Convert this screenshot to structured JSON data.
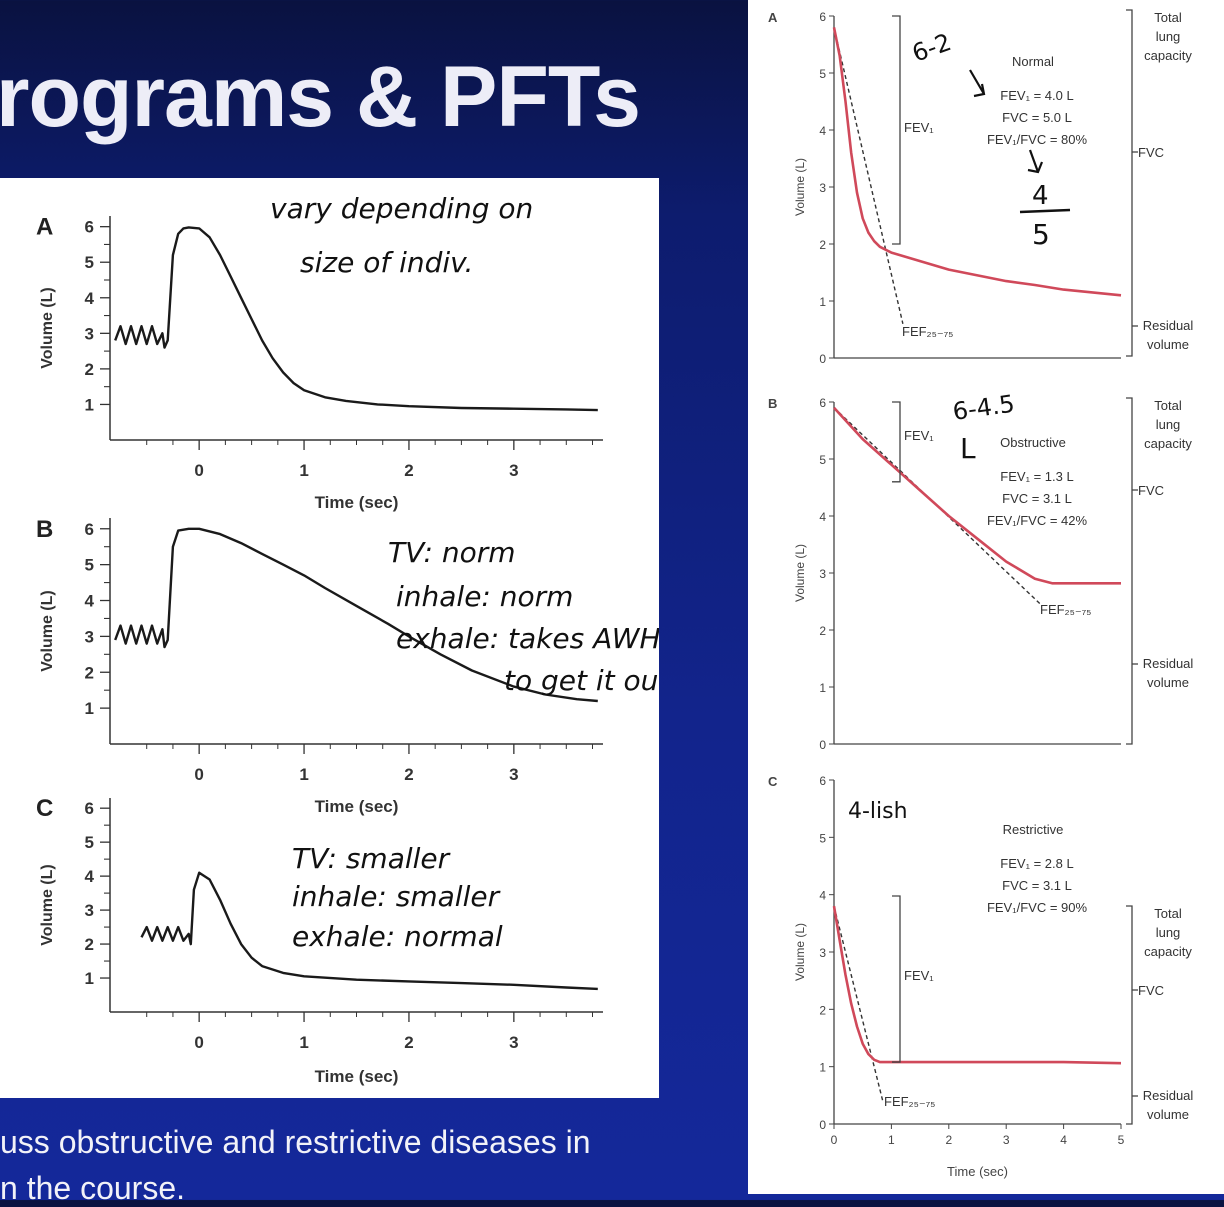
{
  "slide": {
    "title": "rograms & PFTs",
    "footer_lines": [
      "uss obstructive and restrictive diseases in",
      "n the course."
    ]
  },
  "colors": {
    "background_top": "#0a1240",
    "background_bottom": "#14289a",
    "panel": "#ffffff",
    "curve_left": "#1a1a1a",
    "curve_right": "#d0495a",
    "annotation_ink": "#111111"
  },
  "chart_data": [
    {
      "type": "line",
      "panel": "A",
      "xlabel": "Time (sec)",
      "ylabel": "Volume (L)",
      "xticks": [
        0,
        1,
        2,
        3
      ],
      "yticks": [
        1,
        2,
        3,
        4,
        5,
        6
      ],
      "xlim": [
        -0.85,
        3.85
      ],
      "ylim": [
        0,
        6.3
      ],
      "series": [
        {
          "x": [
            -0.8,
            -0.75,
            -0.7,
            -0.65,
            -0.6,
            -0.55,
            -0.5,
            -0.45,
            -0.4,
            -0.35,
            -0.33,
            -0.3,
            -0.25,
            -0.2,
            -0.15,
            -0.1,
            0,
            0.1,
            0.2,
            0.3,
            0.4,
            0.5,
            0.6,
            0.7,
            0.8,
            0.9,
            1.0,
            1.2,
            1.4,
            1.7,
            2.0,
            2.5,
            3.0,
            3.5,
            3.8
          ],
          "y": [
            2.8,
            3.2,
            2.7,
            3.2,
            2.7,
            3.2,
            2.7,
            3.2,
            2.7,
            3.0,
            2.6,
            2.8,
            5.2,
            5.8,
            5.95,
            5.98,
            5.95,
            5.7,
            5.2,
            4.6,
            4.0,
            3.4,
            2.8,
            2.3,
            1.9,
            1.6,
            1.4,
            1.2,
            1.1,
            1.0,
            0.95,
            0.9,
            0.88,
            0.86,
            0.84
          ]
        }
      ],
      "annotations": [
        "vary depending on",
        "size of indiv."
      ]
    },
    {
      "type": "line",
      "panel": "B",
      "xlabel": "Time (sec)",
      "ylabel": "Volume (L)",
      "xticks": [
        0,
        1,
        2,
        3
      ],
      "yticks": [
        1,
        2,
        3,
        4,
        5,
        6
      ],
      "xlim": [
        -0.85,
        3.85
      ],
      "ylim": [
        0,
        6.3
      ],
      "series": [
        {
          "x": [
            -0.8,
            -0.75,
            -0.7,
            -0.65,
            -0.6,
            -0.55,
            -0.5,
            -0.45,
            -0.4,
            -0.35,
            -0.33,
            -0.3,
            -0.25,
            -0.2,
            -0.1,
            0,
            0.2,
            0.4,
            0.6,
            0.8,
            1.0,
            1.2,
            1.5,
            1.8,
            2.0,
            2.3,
            2.6,
            3.0,
            3.3,
            3.6,
            3.8
          ],
          "y": [
            2.9,
            3.3,
            2.8,
            3.3,
            2.8,
            3.3,
            2.8,
            3.3,
            2.8,
            3.2,
            2.7,
            2.9,
            5.5,
            5.95,
            6.0,
            6.0,
            5.85,
            5.6,
            5.3,
            5.0,
            4.7,
            4.35,
            3.85,
            3.35,
            3.0,
            2.5,
            2.05,
            1.6,
            1.38,
            1.25,
            1.2
          ]
        }
      ],
      "annotations": [
        "TV: norm",
        "inhale: norm",
        "exhale: takes AWHILE",
        "to get it out"
      ]
    },
    {
      "type": "line",
      "panel": "C",
      "xlabel": "Time (sec)",
      "ylabel": "Volume (L)",
      "xticks": [
        0,
        1,
        2,
        3
      ],
      "yticks": [
        1,
        2,
        3,
        4,
        5,
        6
      ],
      "xlim": [
        -0.85,
        3.85
      ],
      "ylim": [
        0,
        6.3
      ],
      "series": [
        {
          "x": [
            -0.55,
            -0.5,
            -0.45,
            -0.4,
            -0.35,
            -0.3,
            -0.25,
            -0.2,
            -0.15,
            -0.1,
            -0.08,
            -0.05,
            0,
            0.1,
            0.2,
            0.3,
            0.4,
            0.5,
            0.6,
            0.8,
            1.0,
            1.5,
            2.0,
            2.5,
            3.0,
            3.5,
            3.8
          ],
          "y": [
            2.2,
            2.5,
            2.1,
            2.5,
            2.1,
            2.5,
            2.1,
            2.5,
            2.1,
            2.3,
            2.0,
            3.6,
            4.1,
            3.9,
            3.3,
            2.6,
            2.0,
            1.6,
            1.35,
            1.15,
            1.05,
            0.95,
            0.9,
            0.85,
            0.8,
            0.72,
            0.68
          ]
        }
      ],
      "annotations": [
        "TV: smaller",
        "inhale: smaller",
        "exhale: normal"
      ]
    },
    {
      "type": "line",
      "panel": "A",
      "xlabel": "",
      "ylabel": "Volume (L)",
      "xlim": [
        0,
        5
      ],
      "ylim": [
        0,
        6
      ],
      "yticks": [
        0,
        1,
        2,
        3,
        4,
        5,
        6
      ],
      "title": "Normal",
      "metrics": [
        "FEV₁ = 4.0 L",
        "FVC = 5.0 L",
        "FEV₁/FVC = 80%"
      ],
      "labels": {
        "fev1": "FEV₁",
        "fef": "FEF₂₅₋₇₅",
        "tlc": [
          "Total",
          "lung",
          "capacity"
        ],
        "fvc": "FVC",
        "rv": [
          "Residual",
          "volume"
        ]
      },
      "series": [
        {
          "x": [
            0,
            0.1,
            0.2,
            0.3,
            0.4,
            0.5,
            0.6,
            0.7,
            0.8,
            1.0,
            1.5,
            2.0,
            2.5,
            3.0,
            3.5,
            4.0,
            4.5,
            5.0
          ],
          "y": [
            5.8,
            5.3,
            4.5,
            3.6,
            2.9,
            2.45,
            2.2,
            2.05,
            1.95,
            1.85,
            1.7,
            1.55,
            1.45,
            1.35,
            1.28,
            1.2,
            1.15,
            1.1
          ]
        }
      ],
      "dashed": {
        "x": [
          0,
          1.2
        ],
        "y": [
          5.8,
          0.6
        ]
      },
      "annotations": [
        "6-2",
        "4",
        "5"
      ]
    },
    {
      "type": "line",
      "panel": "B",
      "xlabel": "",
      "ylabel": "Volume (L)",
      "xlim": [
        0,
        5
      ],
      "ylim": [
        0,
        6
      ],
      "yticks": [
        0,
        1,
        2,
        3,
        4,
        5,
        6
      ],
      "title": "Obstructive",
      "metrics": [
        "FEV₁ = 1.3 L",
        "FVC = 3.1 L",
        "FEV₁/FVC = 42%"
      ],
      "labels": {
        "fev1": "FEV₁",
        "fef": "FEF₂₅₋₇₅",
        "tlc": [
          "Total",
          "lung",
          "capacity"
        ],
        "fvc": "FVC",
        "rv": [
          "Residual",
          "volume"
        ]
      },
      "series": [
        {
          "x": [
            0,
            0.5,
            1.0,
            1.5,
            2.0,
            2.5,
            3.0,
            3.5,
            3.8,
            4.0,
            4.5,
            5.0
          ],
          "y": [
            5.9,
            5.35,
            4.9,
            4.45,
            4.0,
            3.6,
            3.2,
            2.9,
            2.82,
            2.82,
            2.82,
            2.82
          ]
        }
      ],
      "dashed": {
        "x": [
          0,
          3.6
        ],
        "y": [
          5.9,
          2.45
        ]
      },
      "annotations": [
        "6-4.5",
        "L"
      ]
    },
    {
      "type": "line",
      "panel": "C",
      "xlabel": "Time (sec)",
      "ylabel": "Volume (L)",
      "xticks": [
        0,
        1,
        2,
        3,
        4,
        5
      ],
      "xlim": [
        0,
        5
      ],
      "ylim": [
        0,
        6
      ],
      "yticks": [
        0,
        1,
        2,
        3,
        4,
        5,
        6
      ],
      "title": "Restrictive",
      "metrics": [
        "FEV₁ = 2.8 L",
        "FVC = 3.1 L",
        "FEV₁/FVC = 90%"
      ],
      "labels": {
        "fev1": "FEV₁",
        "fef": "FEF₂₅₋₇₅",
        "tlc": [
          "Total",
          "lung",
          "capacity"
        ],
        "fvc": "FVC",
        "rv": [
          "Residual",
          "volume"
        ]
      },
      "series": [
        {
          "x": [
            0,
            0.1,
            0.2,
            0.3,
            0.4,
            0.5,
            0.6,
            0.7,
            0.8,
            1.0,
            1.5,
            2.0,
            3.0,
            4.0,
            5.0
          ],
          "y": [
            3.8,
            3.2,
            2.6,
            2.1,
            1.7,
            1.4,
            1.22,
            1.12,
            1.08,
            1.08,
            1.08,
            1.08,
            1.08,
            1.08,
            1.06
          ]
        }
      ],
      "dashed": {
        "x": [
          0,
          0.85
        ],
        "y": [
          3.8,
          0.4
        ]
      },
      "annotations": [
        "4-lish"
      ]
    }
  ]
}
